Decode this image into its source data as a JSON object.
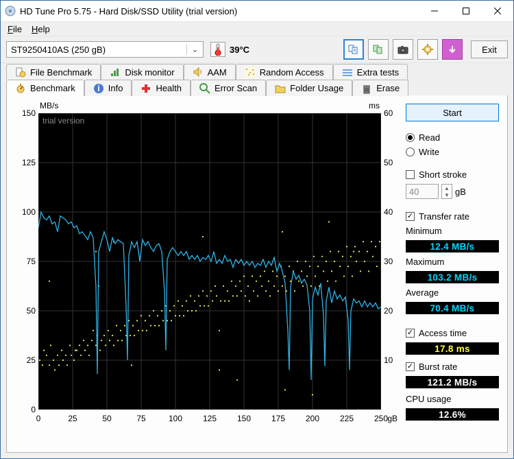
{
  "window": {
    "title": "HD Tune Pro 5.75 - Hard Disk/SSD Utility (trial version)"
  },
  "menu": {
    "file": "File",
    "help": "Help"
  },
  "toolbar": {
    "drive": "ST9250410AS (250 gB)",
    "temp": "39°C",
    "exit": "Exit"
  },
  "tabs_top": {
    "file_benchmark": "File Benchmark",
    "disk_monitor": "Disk monitor",
    "aam": "AAM",
    "random_access": "Random Access",
    "extra_tests": "Extra tests"
  },
  "tabs_bottom": {
    "benchmark": "Benchmark",
    "info": "Info",
    "health": "Health",
    "error_scan": "Error Scan",
    "folder_usage": "Folder Usage",
    "erase": "Erase"
  },
  "chart": {
    "watermark": "trial version",
    "y_left_unit": "MB/s",
    "y_right_unit": "ms",
    "x_unit": "gB",
    "y_left": {
      "min": 0,
      "max": 150,
      "ticks": [
        0,
        25,
        50,
        75,
        100,
        125,
        150
      ]
    },
    "y_right": {
      "min": 0,
      "max": 60,
      "ticks": [
        10,
        20,
        30,
        40,
        50,
        60
      ]
    },
    "x": {
      "min": 0,
      "max": 250,
      "ticks": [
        0,
        25,
        50,
        75,
        100,
        125,
        150,
        175,
        200,
        225,
        250
      ]
    },
    "line_color": "#2db3e6",
    "dot_color": "#f0f060",
    "grid_color": "#333333",
    "background": "#000000",
    "transfer": [
      [
        0,
        92
      ],
      [
        2,
        100
      ],
      [
        4,
        97
      ],
      [
        6,
        96
      ],
      [
        8,
        98
      ],
      [
        10,
        94
      ],
      [
        12,
        95
      ],
      [
        14,
        90
      ],
      [
        16,
        98
      ],
      [
        18,
        97
      ],
      [
        20,
        96
      ],
      [
        22,
        94
      ],
      [
        24,
        95
      ],
      [
        26,
        92
      ],
      [
        28,
        93
      ],
      [
        30,
        89
      ],
      [
        32,
        90
      ],
      [
        34,
        88
      ],
      [
        36,
        86
      ],
      [
        38,
        90
      ],
      [
        40,
        87
      ],
      [
        42,
        62
      ],
      [
        43,
        18
      ],
      [
        44,
        80
      ],
      [
        46,
        85
      ],
      [
        48,
        90
      ],
      [
        50,
        86
      ],
      [
        52,
        80
      ],
      [
        54,
        87
      ],
      [
        56,
        84
      ],
      [
        58,
        86
      ],
      [
        60,
        85
      ],
      [
        62,
        84
      ],
      [
        64,
        52
      ],
      [
        65,
        25
      ],
      [
        66,
        78
      ],
      [
        68,
        85
      ],
      [
        70,
        82
      ],
      [
        72,
        85
      ],
      [
        74,
        75
      ],
      [
        76,
        86
      ],
      [
        78,
        83
      ],
      [
        80,
        85
      ],
      [
        82,
        82
      ],
      [
        84,
        80
      ],
      [
        86,
        83
      ],
      [
        88,
        84
      ],
      [
        90,
        80
      ],
      [
        92,
        60
      ],
      [
        93,
        30
      ],
      [
        94,
        76
      ],
      [
        96,
        80
      ],
      [
        98,
        82
      ],
      [
        100,
        80
      ],
      [
        102,
        78
      ],
      [
        104,
        80
      ],
      [
        106,
        78
      ],
      [
        108,
        80
      ],
      [
        110,
        76
      ],
      [
        112,
        78
      ],
      [
        114,
        76
      ],
      [
        116,
        78
      ],
      [
        118,
        75
      ],
      [
        120,
        77
      ],
      [
        122,
        76
      ],
      [
        124,
        78
      ],
      [
        126,
        75
      ],
      [
        128,
        80
      ],
      [
        130,
        74
      ],
      [
        132,
        76
      ],
      [
        134,
        74
      ],
      [
        136,
        78
      ],
      [
        138,
        75
      ],
      [
        140,
        76
      ],
      [
        142,
        72
      ],
      [
        144,
        76
      ],
      [
        146,
        74
      ],
      [
        148,
        76
      ],
      [
        150,
        73
      ],
      [
        152,
        75
      ],
      [
        154,
        73
      ],
      [
        156,
        75
      ],
      [
        158,
        72
      ],
      [
        160,
        74
      ],
      [
        162,
        73
      ],
      [
        164,
        76
      ],
      [
        166,
        72
      ],
      [
        168,
        75
      ],
      [
        170,
        73
      ],
      [
        172,
        77
      ],
      [
        174,
        70
      ],
      [
        176,
        74
      ],
      [
        178,
        70
      ],
      [
        180,
        64
      ],
      [
        182,
        40
      ],
      [
        183,
        20
      ],
      [
        184,
        62
      ],
      [
        186,
        70
      ],
      [
        188,
        66
      ],
      [
        190,
        68
      ],
      [
        192,
        64
      ],
      [
        194,
        66
      ],
      [
        196,
        63
      ],
      [
        198,
        50
      ],
      [
        199,
        15
      ],
      [
        200,
        56
      ],
      [
        202,
        62
      ],
      [
        204,
        58
      ],
      [
        206,
        64
      ],
      [
        208,
        48
      ],
      [
        209,
        22
      ],
      [
        210,
        55
      ],
      [
        212,
        62
      ],
      [
        214,
        54
      ],
      [
        216,
        60
      ],
      [
        218,
        56
      ],
      [
        220,
        58
      ],
      [
        222,
        55
      ],
      [
        224,
        57
      ],
      [
        226,
        45
      ],
      [
        227,
        20
      ],
      [
        228,
        50
      ],
      [
        230,
        56
      ],
      [
        232,
        54
      ],
      [
        234,
        55
      ],
      [
        236,
        52
      ],
      [
        238,
        55
      ],
      [
        240,
        52
      ],
      [
        242,
        54
      ],
      [
        244,
        52
      ],
      [
        246,
        54
      ],
      [
        248,
        51
      ],
      [
        250,
        52
      ]
    ],
    "access": [
      [
        1,
        10
      ],
      [
        3,
        9
      ],
      [
        4,
        12
      ],
      [
        6,
        11
      ],
      [
        8,
        9
      ],
      [
        9,
        13
      ],
      [
        11,
        10
      ],
      [
        12,
        8
      ],
      [
        14,
        11
      ],
      [
        15,
        9
      ],
      [
        17,
        12
      ],
      [
        18,
        10
      ],
      [
        20,
        11
      ],
      [
        21,
        9
      ],
      [
        23,
        13
      ],
      [
        24,
        11
      ],
      [
        26,
        10
      ],
      [
        27,
        12
      ],
      [
        28,
        12
      ],
      [
        30,
        13
      ],
      [
        31,
        11
      ],
      [
        33,
        14
      ],
      [
        34,
        12
      ],
      [
        36,
        13
      ],
      [
        37,
        11
      ],
      [
        39,
        14
      ],
      [
        40,
        16
      ],
      [
        42,
        13
      ],
      [
        43,
        15
      ],
      [
        45,
        12
      ],
      [
        46,
        14
      ],
      [
        48,
        15
      ],
      [
        49,
        13
      ],
      [
        51,
        16
      ],
      [
        52,
        14
      ],
      [
        54,
        15
      ],
      [
        55,
        13
      ],
      [
        57,
        17
      ],
      [
        58,
        14
      ],
      [
        60,
        16
      ],
      [
        61,
        14
      ],
      [
        63,
        17
      ],
      [
        64,
        15
      ],
      [
        66,
        18
      ],
      [
        67,
        15
      ],
      [
        69,
        17
      ],
      [
        70,
        15
      ],
      [
        72,
        18
      ],
      [
        73,
        16
      ],
      [
        75,
        19
      ],
      [
        76,
        16
      ],
      [
        78,
        18
      ],
      [
        79,
        16
      ],
      [
        81,
        19
      ],
      [
        82,
        17
      ],
      [
        84,
        20
      ],
      [
        85,
        17
      ],
      [
        87,
        19
      ],
      [
        88,
        17
      ],
      [
        90,
        20
      ],
      [
        91,
        18
      ],
      [
        93,
        21
      ],
      [
        94,
        18
      ],
      [
        96,
        20
      ],
      [
        97,
        18
      ],
      [
        99,
        21
      ],
      [
        100,
        19
      ],
      [
        102,
        22
      ],
      [
        103,
        19
      ],
      [
        105,
        21
      ],
      [
        106,
        19
      ],
      [
        108,
        22
      ],
      [
        109,
        20
      ],
      [
        111,
        23
      ],
      [
        112,
        20
      ],
      [
        114,
        22
      ],
      [
        115,
        20
      ],
      [
        117,
        23
      ],
      [
        118,
        21
      ],
      [
        120,
        24
      ],
      [
        121,
        21
      ],
      [
        123,
        23
      ],
      [
        124,
        21
      ],
      [
        126,
        24
      ],
      [
        127,
        22
      ],
      [
        129,
        25
      ],
      [
        130,
        23
      ],
      [
        132,
        16
      ],
      [
        133,
        22
      ],
      [
        135,
        25
      ],
      [
        136,
        22
      ],
      [
        138,
        24
      ],
      [
        139,
        22
      ],
      [
        141,
        26
      ],
      [
        142,
        23
      ],
      [
        144,
        25
      ],
      [
        145,
        23
      ],
      [
        147,
        26
      ],
      [
        148,
        24
      ],
      [
        150,
        27
      ],
      [
        151,
        23
      ],
      [
        153,
        25
      ],
      [
        154,
        22
      ],
      [
        156,
        27
      ],
      [
        157,
        24
      ],
      [
        159,
        26
      ],
      [
        160,
        23
      ],
      [
        162,
        27
      ],
      [
        163,
        25
      ],
      [
        165,
        28
      ],
      [
        166,
        24
      ],
      [
        168,
        26
      ],
      [
        169,
        23
      ],
      [
        171,
        28
      ],
      [
        172,
        25
      ],
      [
        174,
        27
      ],
      [
        175,
        24
      ],
      [
        177,
        29
      ],
      [
        178,
        25
      ],
      [
        180,
        27
      ],
      [
        181,
        24
      ],
      [
        183,
        29
      ],
      [
        184,
        26
      ],
      [
        186,
        28
      ],
      [
        187,
        24
      ],
      [
        189,
        30
      ],
      [
        190,
        26
      ],
      [
        192,
        28
      ],
      [
        193,
        25
      ],
      [
        195,
        30
      ],
      [
        196,
        27
      ],
      [
        198,
        29
      ],
      [
        199,
        25
      ],
      [
        201,
        31
      ],
      [
        202,
        27
      ],
      [
        204,
        29
      ],
      [
        205,
        25
      ],
      [
        207,
        31
      ],
      [
        208,
        28
      ],
      [
        210,
        30
      ],
      [
        211,
        26
      ],
      [
        213,
        32
      ],
      [
        214,
        28
      ],
      [
        216,
        30
      ],
      [
        217,
        26
      ],
      [
        219,
        32
      ],
      [
        220,
        29
      ],
      [
        222,
        31
      ],
      [
        223,
        27
      ],
      [
        225,
        33
      ],
      [
        226,
        29
      ],
      [
        228,
        31
      ],
      [
        229,
        27
      ],
      [
        231,
        33
      ],
      [
        232,
        30
      ],
      [
        234,
        32
      ],
      [
        235,
        28
      ],
      [
        237,
        34
      ],
      [
        238,
        30
      ],
      [
        240,
        32
      ],
      [
        241,
        28
      ],
      [
        243,
        34
      ],
      [
        244,
        31
      ],
      [
        246,
        33
      ],
      [
        247,
        29
      ],
      [
        249,
        34
      ],
      [
        8,
        26
      ],
      [
        42,
        32
      ],
      [
        44,
        25
      ],
      [
        68,
        9
      ],
      [
        120,
        35
      ],
      [
        145,
        6
      ],
      [
        178,
        36
      ],
      [
        212,
        38
      ],
      [
        55,
        34
      ],
      [
        132,
        8
      ],
      [
        180,
        4
      ],
      [
        200,
        3
      ],
      [
        230,
        32
      ]
    ]
  },
  "panel": {
    "start": "Start",
    "read": "Read",
    "write": "Write",
    "short_stroke": "Short stroke",
    "short_stroke_val": "40",
    "short_stroke_unit": "gB",
    "transfer_rate": "Transfer rate",
    "minimum": "Minimum",
    "min_val": "12.4 MB/s",
    "maximum": "Maximum",
    "max_val": "103.2 MB/s",
    "average": "Average",
    "avg_val": "70.4 MB/s",
    "access_time": "Access time",
    "access_val": "17.8 ms",
    "burst_rate": "Burst rate",
    "burst_val": "121.2 MB/s",
    "cpu_usage": "CPU usage",
    "cpu_val": "12.6%"
  }
}
